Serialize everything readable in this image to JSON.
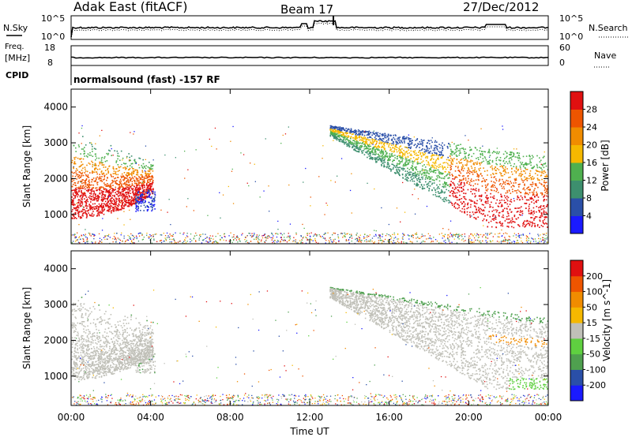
{
  "header": {
    "station": "Adak East (fitACF)",
    "beam": "Beam 17",
    "date": "27/Dec/2012"
  },
  "noise_panel": {
    "left_label": "N.Sky",
    "right_label": "N.Search",
    "left_ticks": [
      "10^5",
      "10^0"
    ],
    "right_ticks": [
      "10^5",
      "10^0"
    ]
  },
  "freq_panel": {
    "left_label_1": "Freq.",
    "left_label_2": "[MHz]",
    "right_label": "Nave",
    "left_ticks": [
      "18",
      "8"
    ],
    "right_ticks": [
      "60",
      "0"
    ]
  },
  "cpid": {
    "label": "CPID",
    "text": "normalsound (fast) -157 RF"
  },
  "x_axis": {
    "label": "Time UT",
    "ticks": [
      "00:00",
      "04:00",
      "08:00",
      "12:00",
      "16:00",
      "20:00",
      "00:00"
    ]
  },
  "y_axis": {
    "label": "Slant Range [km]",
    "ticks": [
      "1000",
      "2000",
      "3000",
      "4000"
    ]
  },
  "power_colorbar": {
    "label": "Power [dB]",
    "ticks": [
      "4",
      "8",
      "12",
      "16",
      "20",
      "24",
      "28"
    ],
    "colors": [
      "#1a1aff",
      "#2a4fa8",
      "#3d8f6e",
      "#4fb04f",
      "#f5b800",
      "#f08c00",
      "#ee5500",
      "#e01010"
    ]
  },
  "velocity_colorbar": {
    "label": "Velocity [m s^-1]",
    "ticks": [
      "200",
      "100",
      "50",
      "15",
      "-15",
      "-50",
      "-100",
      "-200"
    ],
    "colors": [
      "#1a1aff",
      "#2a4fa8",
      "#4fa04f",
      "#5fd040",
      "#c0c0b8",
      "#f5b800",
      "#f08c00",
      "#ee5500",
      "#e01010"
    ]
  },
  "chart_data": [
    {
      "type": "line",
      "title": "N.Sky / N.Search",
      "x": [
        "00:00",
        "04:00",
        "08:00",
        "12:00",
        "16:00",
        "20:00",
        "00:00"
      ],
      "ylabel": "N.Sky",
      "scale": "log",
      "ylim": [
        "10^0",
        "10^5"
      ]
    },
    {
      "type": "line",
      "title": "Freq. / Nave",
      "ylabel": "Freq. [MHz]",
      "ylim": [
        8,
        18
      ],
      "series": [
        {
          "name": "Freq.",
          "values": [
            10.5,
            10.5,
            10.5,
            10.5,
            10.5,
            10.5,
            10.5
          ]
        }
      ]
    },
    {
      "type": "heatmap",
      "title": "Power [dB]",
      "xlabel": "Time UT",
      "ylabel": "Slant Range [km]",
      "xlim": [
        "00:00",
        "00:00"
      ],
      "ylim": [
        180,
        4500
      ],
      "colorbar_range": [
        0,
        30
      ]
    },
    {
      "type": "heatmap",
      "title": "Velocity [m s^-1]",
      "xlabel": "Time UT",
      "ylabel": "Slant Range [km]",
      "xlim": [
        "00:00",
        "00:00"
      ],
      "ylim": [
        180,
        4500
      ],
      "colorbar_range": [
        -200,
        200
      ]
    }
  ]
}
